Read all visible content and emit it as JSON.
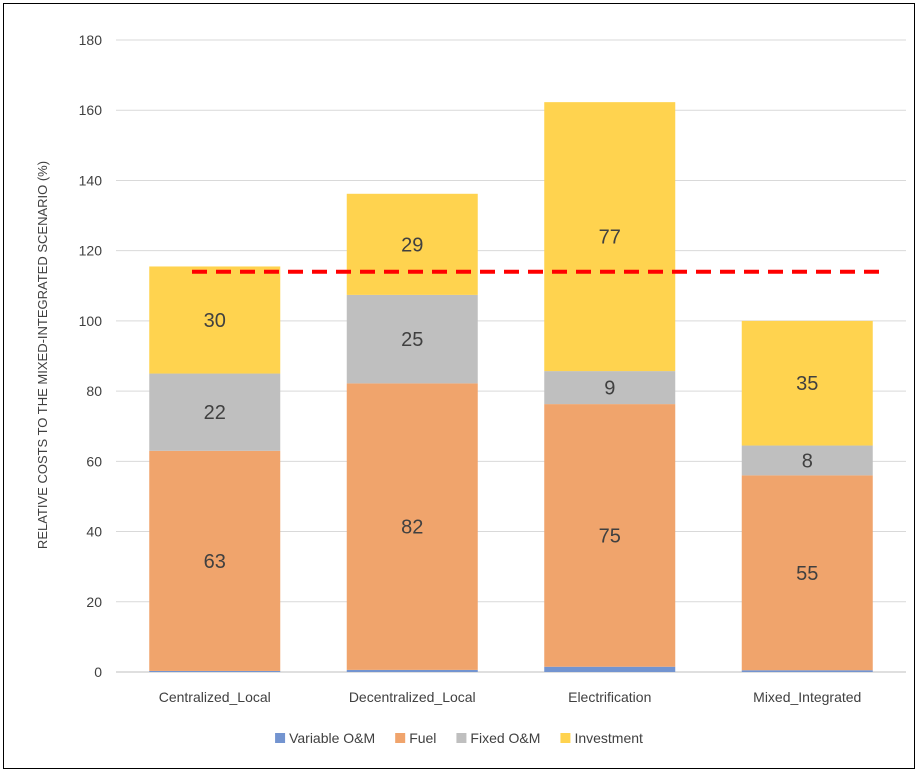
{
  "chart_data": {
    "type": "bar",
    "stacked": true,
    "ylabel": "RELATIVE COSTS TO THE MIXED-INTEGRATED SCENARIO (%)",
    "ylim": [
      0,
      180
    ],
    "yticks": [
      0,
      20,
      40,
      60,
      80,
      100,
      120,
      140,
      160,
      180
    ],
    "grid": true,
    "legend_position": "bottom",
    "categories": [
      "Centralized_Local",
      "Decentralized_Local",
      "Electrification",
      "Mixed_Integrated"
    ],
    "series": [
      {
        "name": "Variable O&M",
        "color": "#7394d0",
        "values": [
          0.3,
          0.6,
          1.5,
          0.5
        ],
        "labels": [
          "",
          "",
          "",
          ""
        ]
      },
      {
        "name": "Fuel",
        "color": "#f0a46c",
        "values": [
          62.7,
          81.6,
          74.8,
          55.5
        ],
        "labels": [
          "63",
          "82",
          "75",
          "55"
        ]
      },
      {
        "name": "Fixed O&M",
        "color": "#bfbfbf",
        "values": [
          22.0,
          25.2,
          9.4,
          8.5
        ],
        "labels": [
          "22",
          "25",
          "9",
          "8"
        ]
      },
      {
        "name": "Investment",
        "color": "#ffd34f",
        "values": [
          30.5,
          28.8,
          76.6,
          35.5
        ],
        "labels": [
          "30",
          "29",
          "77",
          "35"
        ]
      }
    ],
    "reference_line": {
      "value": 114,
      "color": "#ff0000",
      "style": "dashed"
    }
  }
}
